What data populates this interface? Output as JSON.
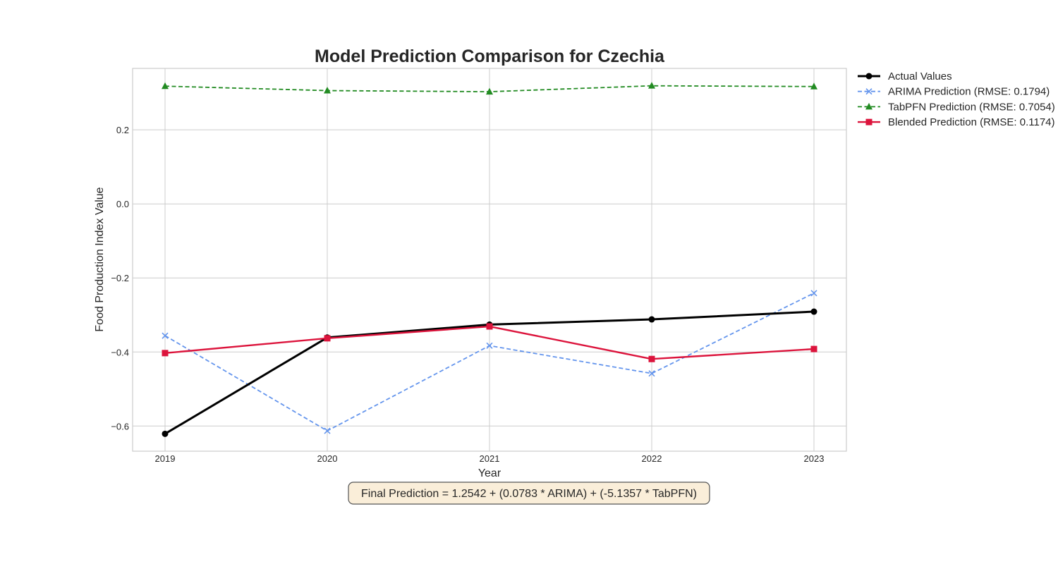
{
  "chart_data": {
    "type": "line",
    "title": "Model Prediction Comparison for Czechia",
    "xlabel": "Year",
    "ylabel": "Food Production Index Value",
    "x": [
      2019,
      2020,
      2021,
      2022,
      2023
    ],
    "x_tick_labels": [
      "2019",
      "2020",
      "2021",
      "2022",
      "2023"
    ],
    "xlim": [
      2018.8,
      2023.2
    ],
    "ylim": [
      -0.668,
      0.366
    ],
    "y_ticks": [
      0.2,
      0.0,
      -0.2,
      -0.4,
      -0.6
    ],
    "y_tick_labels": [
      "0.2",
      "0.0",
      "−0.2",
      "−0.4",
      "−0.6"
    ],
    "grid": true,
    "legend_position": "outside-top-right",
    "series": [
      {
        "name": "Actual Values",
        "values": [
          -0.621,
          -0.361,
          -0.326,
          -0.312,
          -0.291
        ],
        "color": "#000000",
        "line_style": "solid",
        "marker": "circle"
      },
      {
        "name": "ARIMA Prediction (RMSE: 0.1794)",
        "values": [
          -0.356,
          -0.613,
          -0.383,
          -0.458,
          -0.241
        ],
        "color": "#6495ed",
        "line_style": "dashed",
        "marker": "x"
      },
      {
        "name": "TabPFN Prediction (RMSE: 0.7054)",
        "values": [
          0.318,
          0.306,
          0.303,
          0.319,
          0.317
        ],
        "color": "#228b22",
        "line_style": "dashed",
        "marker": "triangle"
      },
      {
        "name": "Blended Prediction (RMSE: 0.1174)",
        "values": [
          -0.403,
          -0.363,
          -0.331,
          -0.419,
          -0.392
        ],
        "color": "#dc143c",
        "line_style": "solid",
        "marker": "square"
      }
    ],
    "annotation": "Final Prediction = 1.2542 + (0.0783 * ARIMA) + (-5.1357 * TabPFN)"
  },
  "colors": {
    "grid": "#cccccc",
    "frame": "#cccccc",
    "text": "#262626",
    "annotation_fill": "#f5deb3",
    "annotation_border": "#555555"
  }
}
